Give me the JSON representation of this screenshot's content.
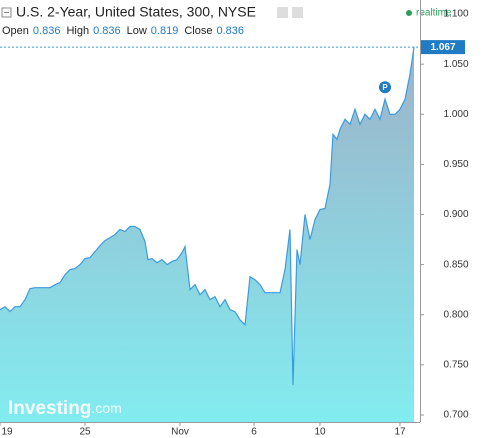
{
  "chart_data": {
    "type": "area",
    "title": "U.S. 2-Year, United States, 300, NYSE",
    "status": "realtime",
    "stats": [
      {
        "label": "Open",
        "value": 0.836
      },
      {
        "label": "High",
        "value": 0.836
      },
      {
        "label": "Low",
        "value": 0.819
      },
      {
        "label": "Close",
        "value": 0.836
      }
    ],
    "watermark": [
      "Investing",
      ".com"
    ],
    "marker": "P",
    "line_color": "#3c9be0",
    "area_colors": [
      "#9db2c9",
      "#82ecf0"
    ],
    "x": [
      0,
      0.25,
      0.5,
      0.75,
      1,
      1.25,
      1.5,
      1.75,
      2,
      2.5,
      2.75,
      3,
      3.25,
      3.5,
      3.75,
      4,
      4.25,
      4.5,
      4.75,
      5,
      5.25,
      5.5,
      5.75,
      6,
      6.25,
      6.5,
      6.75,
      7,
      7.25,
      7.4,
      7.6,
      7.85,
      8.1,
      8.35,
      8.6,
      8.85,
      9.1,
      9.25,
      9.5,
      9.75,
      10,
      10.25,
      10.5,
      10.75,
      11,
      11.25,
      11.5,
      11.75,
      12,
      12.25,
      12.5,
      12.75,
      13,
      13.25,
      13.5,
      13.75,
      14,
      14.25,
      14.5,
      14.65,
      14.85,
      15,
      15.25,
      15.5,
      15.75,
      16,
      16.25,
      16.5,
      16.65,
      16.85,
      17,
      17.25,
      17.5,
      17.75,
      18,
      18.25,
      18.5,
      18.75,
      19,
      19.25,
      19.5,
      19.75,
      20,
      20.25,
      20.5,
      20.7
    ],
    "values": [
      0.805,
      0.808,
      0.803,
      0.808,
      0.808,
      0.815,
      0.826,
      0.827,
      0.827,
      0.827,
      0.83,
      0.832,
      0.84,
      0.845,
      0.846,
      0.85,
      0.856,
      0.857,
      0.863,
      0.869,
      0.874,
      0.877,
      0.88,
      0.885,
      0.883,
      0.888,
      0.888,
      0.885,
      0.873,
      0.855,
      0.856,
      0.852,
      0.855,
      0.85,
      0.853,
      0.855,
      0.862,
      0.868,
      0.825,
      0.83,
      0.82,
      0.825,
      0.815,
      0.818,
      0.808,
      0.815,
      0.805,
      0.803,
      0.795,
      0.79,
      0.838,
      0.835,
      0.83,
      0.822,
      0.822,
      0.822,
      0.822,
      0.845,
      0.885,
      0.73,
      0.865,
      0.85,
      0.9,
      0.875,
      0.895,
      0.905,
      0.906,
      0.93,
      0.98,
      0.975,
      0.985,
      0.995,
      0.99,
      1.005,
      0.99,
      1.0,
      0.995,
      1.005,
      0.995,
      1.015,
      1.0,
      1.0,
      1.005,
      1.015,
      1.04,
      1.067
    ],
    "marker_index": 79,
    "xlim": [
      0,
      21
    ],
    "ylim": [
      0.693,
      1.114
    ],
    "xticks": [
      {
        "value": 0,
        "label": "19"
      },
      {
        "value": 4.25,
        "label": "25"
      },
      {
        "value": 9,
        "label": "Nov"
      },
      {
        "value": 12.7,
        "label": "6"
      },
      {
        "value": 16,
        "label": "10"
      },
      {
        "value": 20,
        "label": "17"
      }
    ],
    "yticks": [
      {
        "value": 0.7,
        "label": "0.700"
      },
      {
        "value": 0.75,
        "label": "0.750"
      },
      {
        "value": 0.8,
        "label": "0.800"
      },
      {
        "value": 0.85,
        "label": "0.850"
      },
      {
        "value": 0.9,
        "label": "0.900"
      },
      {
        "value": 0.95,
        "label": "0.950"
      },
      {
        "value": 1.0,
        "label": "1.000"
      },
      {
        "value": 1.05,
        "label": "1.050"
      },
      {
        "value": 1.1,
        "label": "1.100"
      }
    ]
  }
}
